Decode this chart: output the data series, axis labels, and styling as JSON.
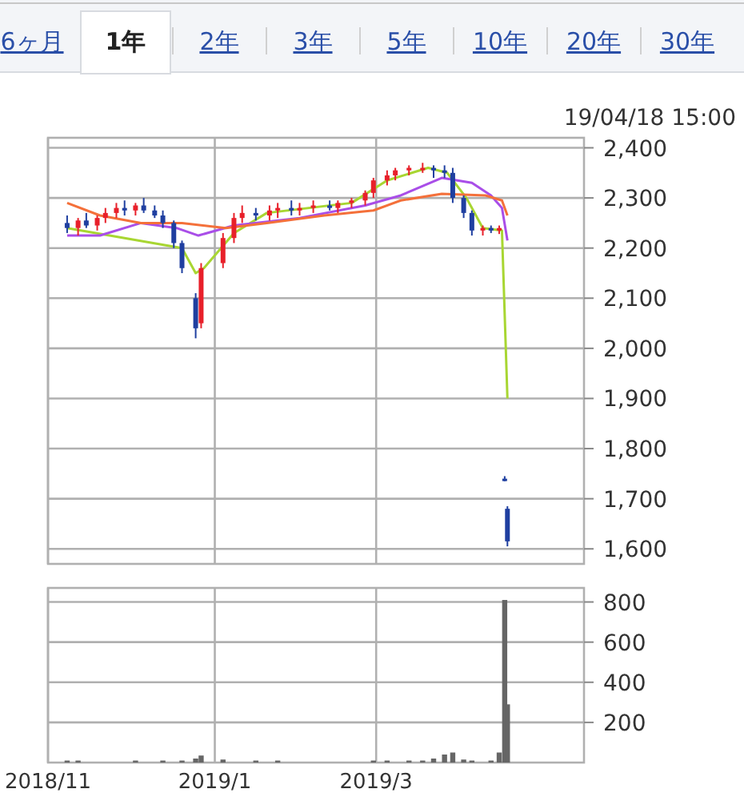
{
  "chart_data": [
    {
      "type": "candlestick",
      "annotations": [
        "6ヶ月",
        "1年",
        "2年",
        "3年",
        "5年",
        "10年",
        "20年",
        "30年",
        "19/04/18 15:00"
      ],
      "x": [
        "2018-11-08",
        "2018-11-12",
        "2018-11-15",
        "2018-11-19",
        "2018-11-22",
        "2018-11-26",
        "2018-11-29",
        "2018-12-03",
        "2018-12-06",
        "2018-12-10",
        "2018-12-13",
        "2018-12-17",
        "2018-12-20",
        "2018-12-25",
        "2018-12-27",
        "2019-01-04",
        "2019-01-08",
        "2019-01-11",
        "2019-01-16",
        "2019-01-21",
        "2019-01-24",
        "2019-01-29",
        "2019-02-01",
        "2019-02-06",
        "2019-02-12",
        "2019-02-15",
        "2019-02-20",
        "2019-02-25",
        "2019-02-28",
        "2019-03-05",
        "2019-03-08",
        "2019-03-13",
        "2019-03-18",
        "2019-03-22",
        "2019-03-26",
        "2019-03-29",
        "2019-04-02",
        "2019-04-05",
        "2019-04-09",
        "2019-04-12",
        "2019-04-15",
        "2019-04-17",
        "2019-04-18"
      ],
      "ohlc": [
        [
          2250,
          2265,
          2230,
          2240
        ],
        [
          2240,
          2260,
          2225,
          2255
        ],
        [
          2255,
          2270,
          2240,
          2245
        ],
        [
          2245,
          2265,
          2235,
          2260
        ],
        [
          2260,
          2280,
          2250,
          2270
        ],
        [
          2270,
          2290,
          2260,
          2280
        ],
        [
          2280,
          2295,
          2265,
          2275
        ],
        [
          2275,
          2290,
          2265,
          2285
        ],
        [
          2285,
          2300,
          2270,
          2275
        ],
        [
          2275,
          2285,
          2260,
          2265
        ],
        [
          2265,
          2275,
          2240,
          2250
        ],
        [
          2250,
          2255,
          2200,
          2210
        ],
        [
          2210,
          2215,
          2150,
          2160
        ],
        [
          2100,
          2110,
          2020,
          2040
        ],
        [
          2050,
          2170,
          2040,
          2160
        ],
        [
          2170,
          2230,
          2160,
          2220
        ],
        [
          2220,
          2270,
          2210,
          2260
        ],
        [
          2260,
          2285,
          2250,
          2270
        ],
        [
          2270,
          2280,
          2255,
          2265
        ],
        [
          2265,
          2285,
          2255,
          2275
        ],
        [
          2275,
          2290,
          2260,
          2280
        ],
        [
          2280,
          2295,
          2265,
          2275
        ],
        [
          2275,
          2290,
          2265,
          2280
        ],
        [
          2280,
          2295,
          2270,
          2285
        ],
        [
          2285,
          2295,
          2275,
          2280
        ],
        [
          2280,
          2295,
          2270,
          2290
        ],
        [
          2290,
          2300,
          2280,
          2295
        ],
        [
          2295,
          2315,
          2285,
          2310
        ],
        [
          2310,
          2340,
          2300,
          2335
        ],
        [
          2335,
          2355,
          2325,
          2345
        ],
        [
          2345,
          2360,
          2335,
          2355
        ],
        [
          2355,
          2365,
          2345,
          2360
        ],
        [
          2360,
          2370,
          2350,
          2360
        ],
        [
          2360,
          2365,
          2340,
          2355
        ],
        [
          2355,
          2365,
          2340,
          2350
        ],
        [
          2350,
          2360,
          2290,
          2300
        ],
        [
          2300,
          2305,
          2260,
          2270
        ],
        [
          2270,
          2275,
          2225,
          2235
        ],
        [
          2235,
          2245,
          2225,
          2240
        ],
        [
          2240,
          2245,
          2230,
          2235
        ],
        [
          2235,
          2245,
          2228,
          2240
        ],
        [
          1740,
          1745,
          1735,
          1740
        ],
        [
          1680,
          1685,
          1605,
          1615
        ]
      ],
      "colors": [
        "#1f3fa0",
        "#e8202a",
        "#1f3fa0",
        "#e8202a",
        "#e8202a",
        "#e8202a",
        "#1f3fa0",
        "#e8202a",
        "#1f3fa0",
        "#1f3fa0",
        "#1f3fa0",
        "#1f3fa0",
        "#1f3fa0",
        "#1f3fa0",
        "#e8202a",
        "#e8202a",
        "#e8202a",
        "#e8202a",
        "#1f3fa0",
        "#e8202a",
        "#e8202a",
        "#1f3fa0",
        "#e8202a",
        "#e8202a",
        "#1f3fa0",
        "#e8202a",
        "#e8202a",
        "#e8202a",
        "#e8202a",
        "#e8202a",
        "#e8202a",
        "#e8202a",
        "#e8202a",
        "#1f3fa0",
        "#1f3fa0",
        "#1f3fa0",
        "#1f3fa0",
        "#1f3fa0",
        "#e8202a",
        "#1f3fa0",
        "#e8202a",
        "#1f3fa0",
        "#1f3fa0"
      ],
      "series": [
        {
          "type": "line",
          "color": "#a8d632",
          "x": [
            "2018-11-08",
            "2018-12-20",
            "2018-12-25",
            "2018-12-28",
            "2019-01-08",
            "2019-01-20",
            "2019-02-20",
            "2019-03-05",
            "2019-03-20",
            "2019-03-27",
            "2019-04-03",
            "2019-04-09",
            "2019-04-16",
            "2019-04-18"
          ],
          "values": [
            2240,
            2200,
            2150,
            2160,
            2230,
            2270,
            2290,
            2335,
            2360,
            2350,
            2300,
            2240,
            2235,
            1900
          ]
        },
        {
          "type": "line",
          "color": "#a94ee8",
          "x": [
            "2018-11-08",
            "2018-11-20",
            "2018-12-05",
            "2018-12-18",
            "2018-12-26",
            "2019-01-08",
            "2019-02-01",
            "2019-02-25",
            "2019-03-10",
            "2019-03-25",
            "2019-04-05",
            "2019-04-12",
            "2019-04-16",
            "2019-04-18"
          ],
          "values": [
            2225,
            2225,
            2250,
            2240,
            2225,
            2245,
            2260,
            2285,
            2305,
            2340,
            2330,
            2305,
            2280,
            2215
          ]
        },
        {
          "type": "line",
          "color": "#f4703a",
          "x": [
            "2018-11-08",
            "2018-11-20",
            "2018-12-05",
            "2018-12-20",
            "2019-01-05",
            "2019-01-20",
            "2019-02-10",
            "2019-02-28",
            "2019-03-10",
            "2019-03-25",
            "2019-04-10",
            "2019-04-16",
            "2019-04-18"
          ],
          "values": [
            2290,
            2265,
            2250,
            2250,
            2240,
            2250,
            2265,
            2275,
            2295,
            2308,
            2305,
            2295,
            2265
          ]
        }
      ],
      "xlim": [
        "2018-11-01",
        "2019-05-16"
      ],
      "xticks": [
        {
          "value": "2018-11-01",
          "label": null
        },
        {
          "value": "2019-01-01",
          "label": null
        },
        {
          "value": "2019-03-01",
          "label": null
        }
      ],
      "ylim": [
        1570,
        2420
      ],
      "yticks": [
        {
          "value": 1600,
          "label": "1,600"
        },
        {
          "value": 1700,
          "label": "1,700"
        },
        {
          "value": 1800,
          "label": "1,800"
        },
        {
          "value": 1900,
          "label": "1,900"
        },
        {
          "value": 2000,
          "label": "2,000"
        },
        {
          "value": 2100,
          "label": "2,100"
        },
        {
          "value": 2200,
          "label": "2,200"
        },
        {
          "value": 2300,
          "label": "2,300"
        },
        {
          "value": 2400,
          "label": "2,400"
        }
      ],
      "grid": true,
      "tick_labels": "y"
    },
    {
      "type": "bar",
      "color": "#666666",
      "x": [
        "2018-11-08",
        "2018-11-12",
        "2018-12-03",
        "2018-12-13",
        "2018-12-20",
        "2018-12-25",
        "2018-12-27",
        "2019-01-04",
        "2019-01-16",
        "2019-01-24",
        "2019-02-28",
        "2019-03-05",
        "2019-03-13",
        "2019-03-18",
        "2019-03-22",
        "2019-03-26",
        "2019-03-29",
        "2019-04-02",
        "2019-04-05",
        "2019-04-12",
        "2019-04-15",
        "2019-04-17",
        "2019-04-18"
      ],
      "values": [
        10,
        10,
        10,
        10,
        10,
        20,
        35,
        15,
        10,
        10,
        10,
        10,
        10,
        10,
        20,
        40,
        50,
        15,
        10,
        10,
        50,
        810,
        290
      ],
      "xlim": [
        "2018-11-01",
        "2019-05-16"
      ],
      "xticks": [
        {
          "value": "2018-11-01",
          "label": "2018/11"
        },
        {
          "value": "2019-01-01",
          "label": "2019/1"
        },
        {
          "value": "2019-03-01",
          "label": "2019/3"
        }
      ],
      "ylim": [
        0,
        870
      ],
      "yticks": [
        200,
        400,
        600,
        800
      ],
      "grid": true
    }
  ]
}
